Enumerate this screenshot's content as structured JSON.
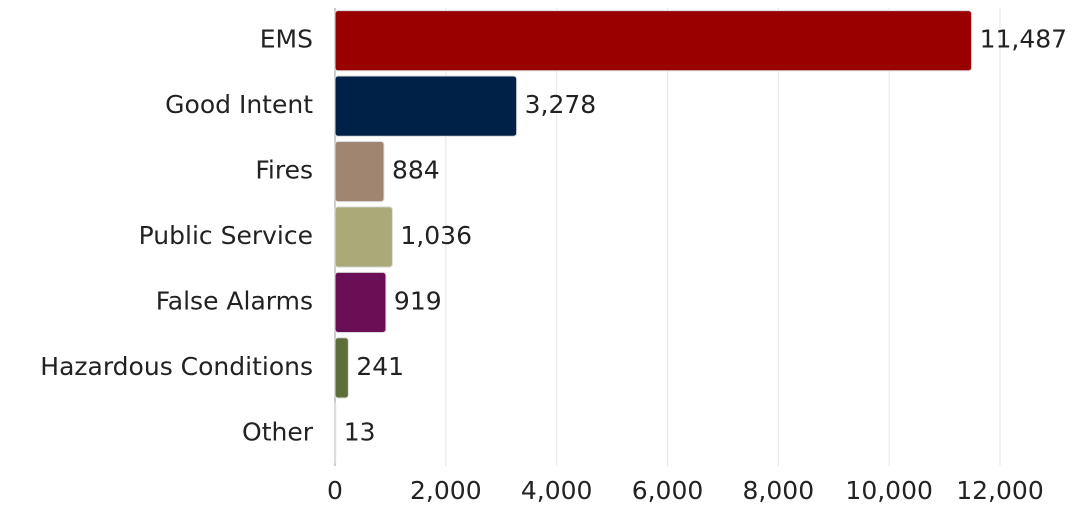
{
  "chart_data": {
    "type": "bar",
    "orientation": "horizontal",
    "categories": [
      "EMS",
      "Good Intent",
      "Fires",
      "Public Service",
      "False Alarms",
      "Hazardous Conditions",
      "Other"
    ],
    "values": [
      11487,
      3278,
      884,
      1036,
      919,
      241,
      13
    ],
    "value_labels": [
      "11,487",
      "3,278",
      "884",
      "1,036",
      "919",
      "241",
      "13"
    ],
    "colors": [
      "#990000",
      "#002147",
      "#a08570",
      "#a9aa78",
      "#6a0f55",
      "#5e6e38",
      "#c8c8c8"
    ],
    "xlim": [
      0,
      12000
    ],
    "xticks": [
      0,
      {
        "value": 2000,
        "label": "2,000"
      },
      {
        "value": 4000,
        "label": "4,000"
      },
      {
        "value": 6000,
        "label": "6,000"
      },
      {
        "value": 8000,
        "label": "8,000"
      },
      {
        "value": 10000,
        "label": "10,000"
      },
      {
        "value": 12000,
        "label": "12,000"
      }
    ],
    "grid": true
  }
}
